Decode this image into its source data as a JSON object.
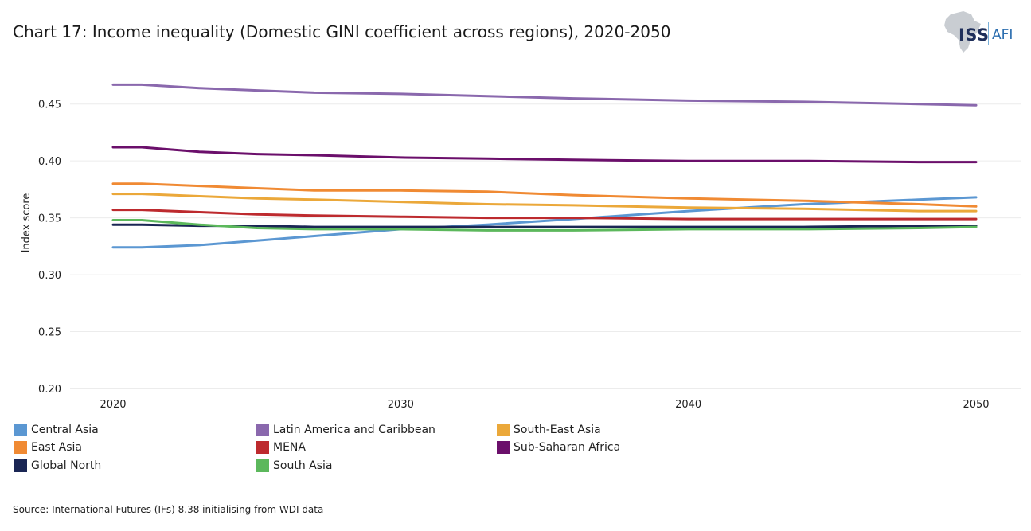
{
  "header": {
    "title": "Chart 17: Income inequality (Domestic GINI coefficient across regions), 2020-2050"
  },
  "logo": {
    "iss": "ISS",
    "afi": "AFI"
  },
  "source": "Source: International Futures (IFs) 8.38 initialising from WDI data",
  "chart_data": {
    "type": "line",
    "title": "Chart 17: Income inequality (Domestic GINI coefficient across regions), 2020-2050",
    "xlabel": "",
    "ylabel": "Index score",
    "xlim": [
      2020,
      2050
    ],
    "ylim": [
      0.2,
      0.475
    ],
    "x_ticks": [
      2020,
      2030,
      2040,
      2050
    ],
    "y_ticks": [
      0.2,
      0.25,
      0.3,
      0.35,
      0.4,
      0.45
    ],
    "x_tick_labels": [
      "2020",
      "2030",
      "2040",
      "2050"
    ],
    "y_tick_labels": [
      "0.20",
      "0.25",
      "0.30",
      "0.35",
      "0.40",
      "0.45"
    ],
    "grid": true,
    "legend_position": "bottom",
    "series": [
      {
        "name": "Central Asia",
        "color": "#5b97d2",
        "x": [
          2020,
          2021,
          2023,
          2025,
          2027,
          2030,
          2033,
          2036,
          2040,
          2044,
          2048,
          2050
        ],
        "values": [
          0.324,
          0.324,
          0.326,
          0.33,
          0.334,
          0.34,
          0.344,
          0.349,
          0.356,
          0.362,
          0.366,
          0.368
        ]
      },
      {
        "name": "Latin America and Caribbean",
        "color": "#8a68ad",
        "x": [
          2020,
          2021,
          2023,
          2025,
          2027,
          2030,
          2033,
          2036,
          2040,
          2044,
          2048,
          2050
        ],
        "values": [
          0.467,
          0.467,
          0.464,
          0.462,
          0.46,
          0.459,
          0.457,
          0.455,
          0.453,
          0.452,
          0.45,
          0.449
        ]
      },
      {
        "name": "South-East Asia",
        "color": "#eba83a",
        "x": [
          2020,
          2021,
          2023,
          2025,
          2027,
          2030,
          2033,
          2036,
          2040,
          2044,
          2048,
          2050
        ],
        "values": [
          0.371,
          0.371,
          0.369,
          0.367,
          0.366,
          0.364,
          0.362,
          0.361,
          0.359,
          0.358,
          0.356,
          0.356
        ]
      },
      {
        "name": "East Asia",
        "color": "#f08a33",
        "x": [
          2020,
          2021,
          2023,
          2025,
          2027,
          2030,
          2033,
          2036,
          2040,
          2044,
          2048,
          2050
        ],
        "values": [
          0.38,
          0.38,
          0.378,
          0.376,
          0.374,
          0.374,
          0.373,
          0.37,
          0.367,
          0.365,
          0.362,
          0.36
        ]
      },
      {
        "name": "MENA",
        "color": "#bd2a2e",
        "x": [
          2020,
          2021,
          2023,
          2025,
          2027,
          2030,
          2033,
          2036,
          2040,
          2044,
          2048,
          2050
        ],
        "values": [
          0.357,
          0.357,
          0.355,
          0.353,
          0.352,
          0.351,
          0.35,
          0.35,
          0.349,
          0.349,
          0.349,
          0.349
        ]
      },
      {
        "name": "Sub-Saharan Africa",
        "color": "#6b0f6b",
        "x": [
          2020,
          2021,
          2023,
          2025,
          2027,
          2030,
          2033,
          2036,
          2040,
          2044,
          2048,
          2050
        ],
        "values": [
          0.412,
          0.412,
          0.408,
          0.406,
          0.405,
          0.403,
          0.402,
          0.401,
          0.4,
          0.4,
          0.399,
          0.399
        ]
      },
      {
        "name": "Global North",
        "color": "#1a2654",
        "x": [
          2020,
          2021,
          2023,
          2025,
          2027,
          2030,
          2033,
          2036,
          2040,
          2044,
          2048,
          2050
        ],
        "values": [
          0.344,
          0.344,
          0.343,
          0.343,
          0.342,
          0.342,
          0.342,
          0.342,
          0.342,
          0.342,
          0.343,
          0.343
        ]
      },
      {
        "name": "South Asia",
        "color": "#5cb85c",
        "x": [
          2020,
          2021,
          2023,
          2025,
          2027,
          2030,
          2033,
          2036,
          2040,
          2044,
          2048,
          2050
        ],
        "values": [
          0.348,
          0.348,
          0.344,
          0.341,
          0.34,
          0.34,
          0.339,
          0.339,
          0.34,
          0.34,
          0.341,
          0.342
        ]
      }
    ]
  }
}
